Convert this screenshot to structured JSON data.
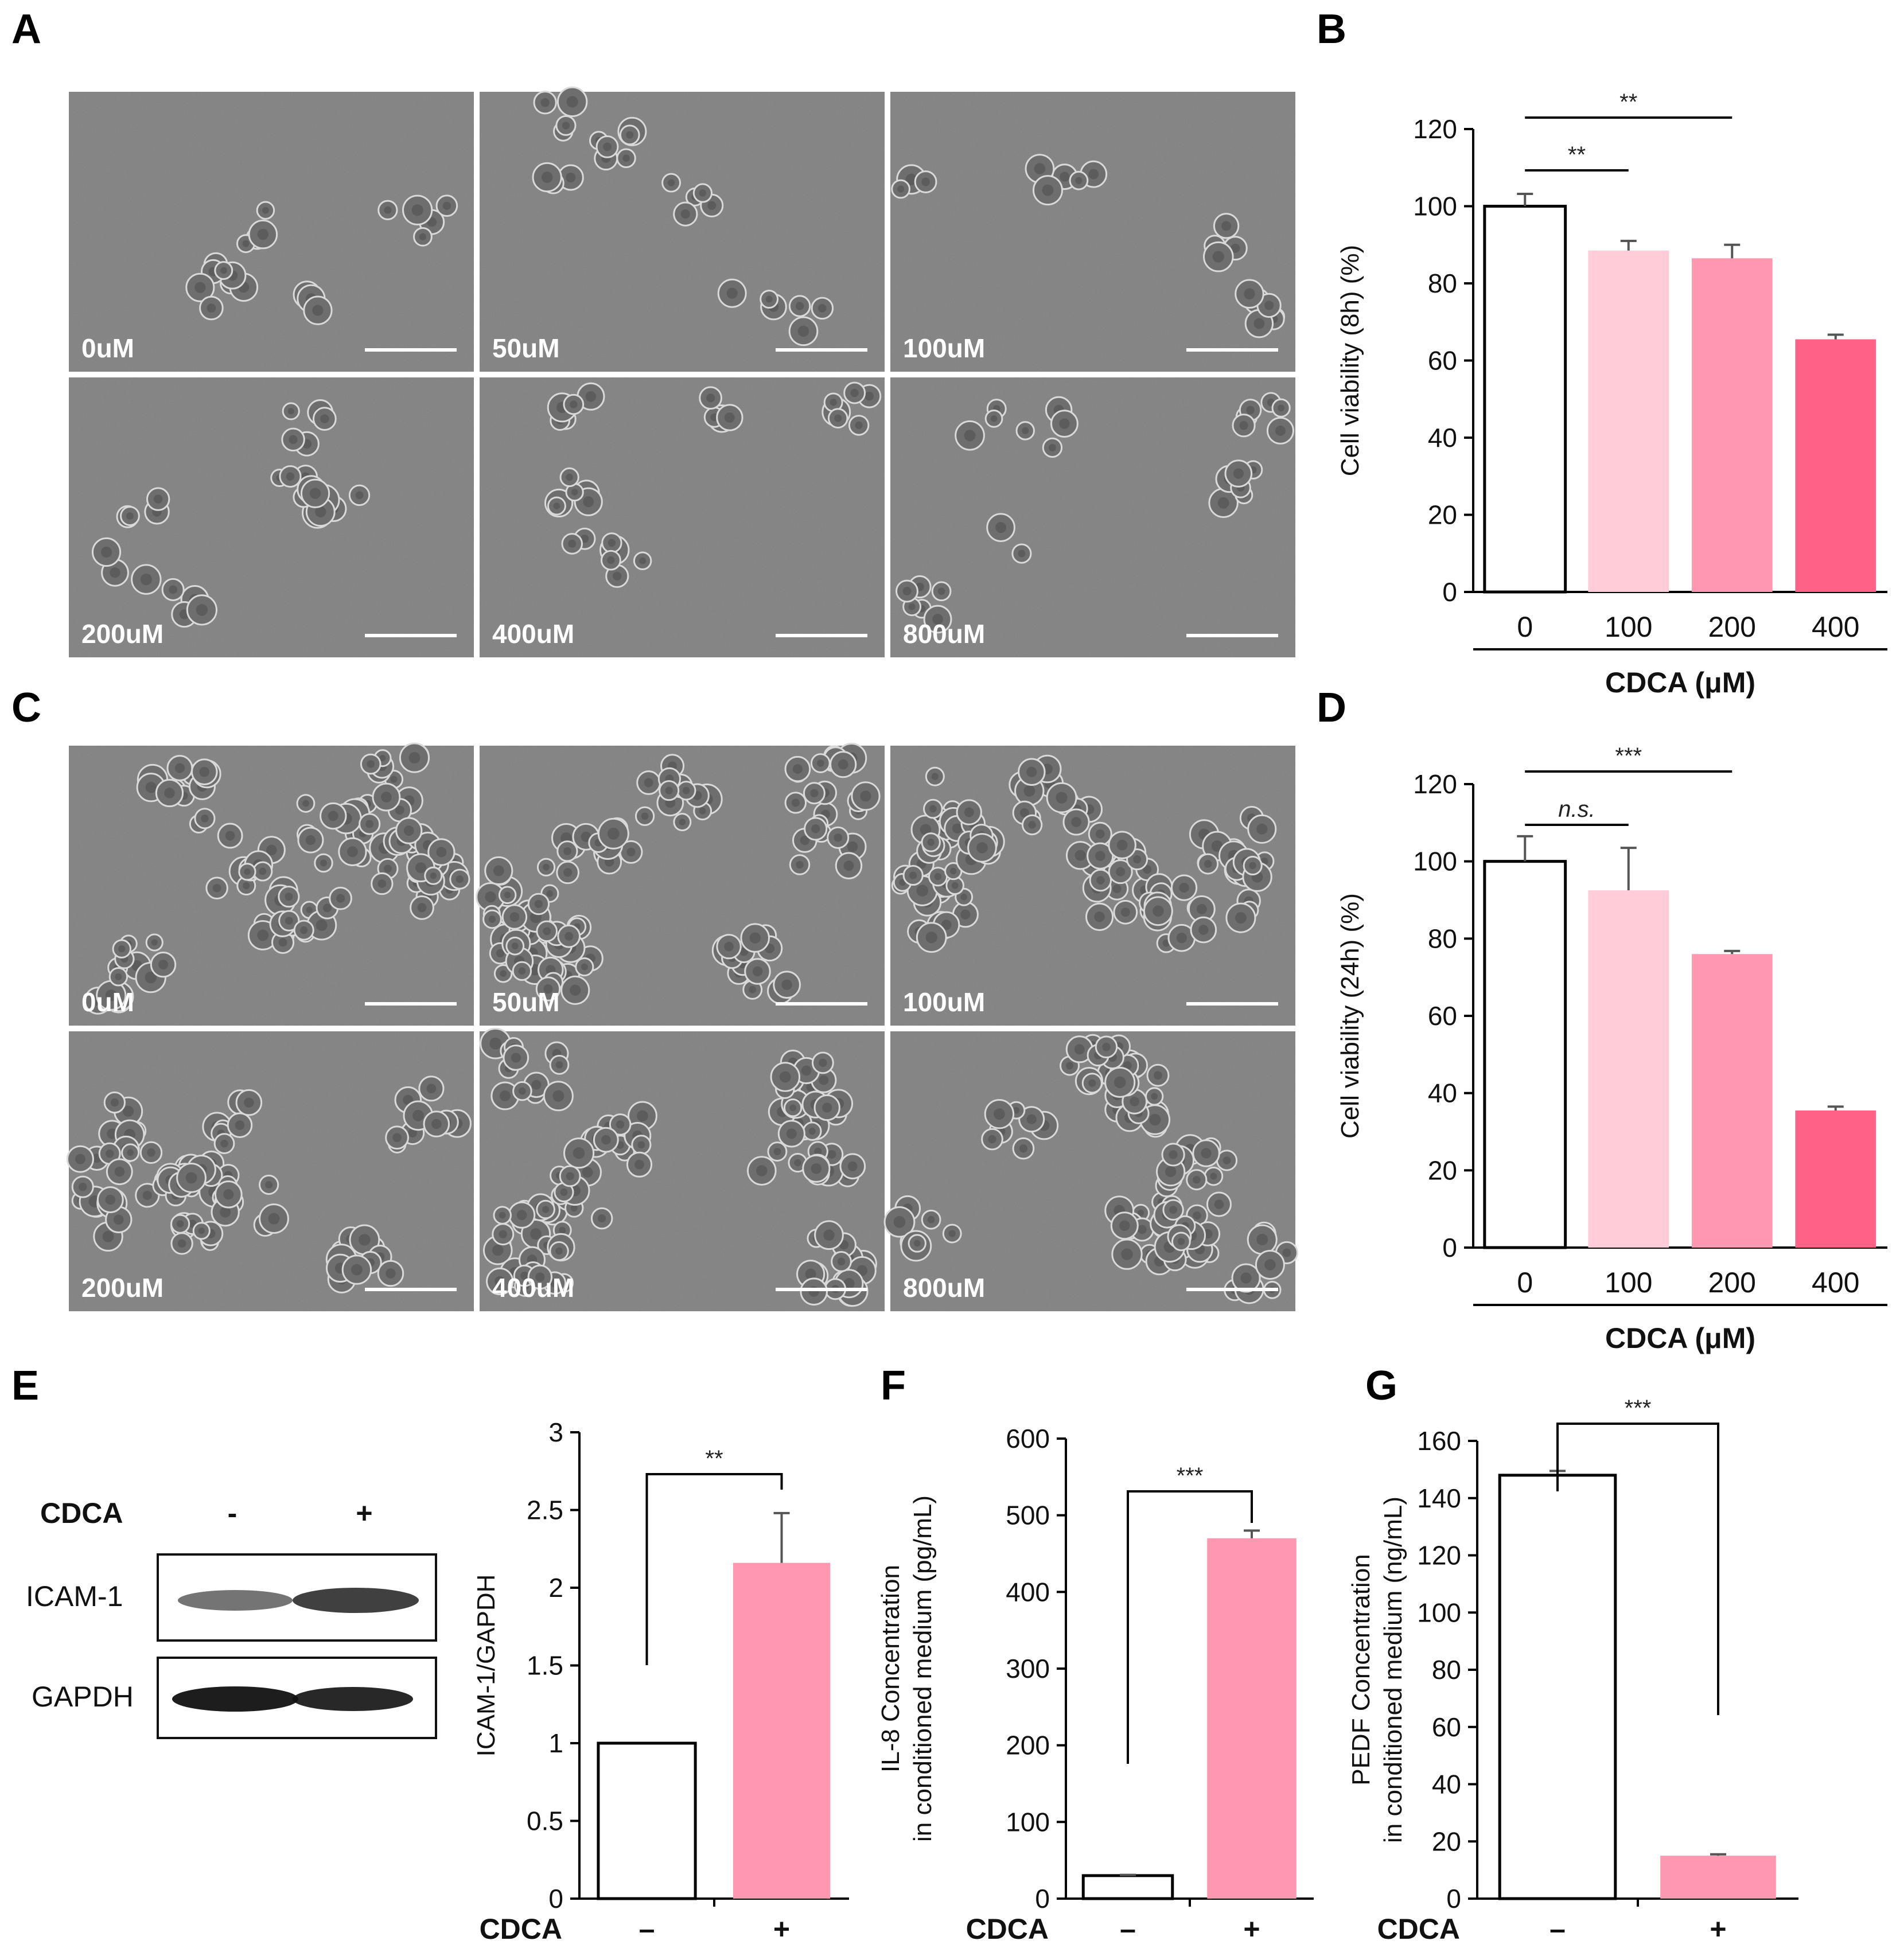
{
  "panel_labels": [
    "A",
    "B",
    "C",
    "D",
    "E",
    "F",
    "G"
  ],
  "micrographs": [
    {
      "labels": [
        "0uM",
        "50uM",
        "100uM",
        "200uM",
        "400uM",
        "800uM"
      ],
      "dense": false
    },
    {
      "labels": [
        "0uM",
        "50uM",
        "100uM",
        "200uM",
        "400uM",
        "800uM"
      ],
      "dense": true
    }
  ],
  "western_blot": {
    "condition_label": "CDCA",
    "lanes": [
      "-",
      "+"
    ],
    "bands": [
      "ICAM-1",
      "GAPDH"
    ],
    "colors": {
      "band": "#1e1e1e",
      "background": "#ffffff"
    }
  },
  "chart_data": [
    {
      "panel": "B",
      "type": "bar",
      "categories": [
        "0",
        "100",
        "200",
        "400"
      ],
      "values": [
        100,
        88.5,
        86.5,
        65.5
      ],
      "errors": [
        3.2,
        2.5,
        3.5,
        1.2
      ],
      "ylabel": "Cell viability (8h) (%)",
      "xlabel": "CDCA (μM)",
      "ylim": [
        0,
        120
      ],
      "yticks": [
        0,
        20,
        40,
        60,
        80,
        100,
        120
      ],
      "colors": [
        "#ffffff",
        "#ffccd8",
        "#fe97b0",
        "#ff6187"
      ],
      "significance": [
        {
          "from": 0,
          "to": 1,
          "label": "**"
        },
        {
          "from": 0,
          "to": 2,
          "label": "**"
        }
      ]
    },
    {
      "panel": "D",
      "type": "bar",
      "categories": [
        "0",
        "100",
        "200",
        "400"
      ],
      "values": [
        100,
        92.5,
        76,
        35.5
      ],
      "errors": [
        6.5,
        11,
        0.8,
        1
      ],
      "ylabel": "Cell viability (24h) (%)",
      "xlabel": "CDCA (μM)",
      "ylim": [
        0,
        120
      ],
      "yticks": [
        0,
        20,
        40,
        60,
        80,
        100,
        120
      ],
      "colors": [
        "#ffffff",
        "#ffccd8",
        "#fe97b0",
        "#ff6187"
      ],
      "significance": [
        {
          "from": 0,
          "to": 1,
          "label": "n.s.",
          "italic": true
        },
        {
          "from": 0,
          "to": 2,
          "label": "***"
        }
      ]
    },
    {
      "panel": "E",
      "type": "bar",
      "categories": [
        "–",
        "+"
      ],
      "values": [
        1,
        2.16
      ],
      "errors": [
        0,
        0.32
      ],
      "ylabel": "ICAM-1/GAPDH",
      "xlabel": "CDCA",
      "ylim": [
        0,
        3
      ],
      "yticks": [
        "0",
        "0.5",
        "1",
        "1.5",
        "2",
        "2.5",
        "3"
      ],
      "colors": [
        "#ffffff",
        "#fe97b0"
      ],
      "significance": [
        {
          "label": "**"
        }
      ]
    },
    {
      "panel": "F",
      "type": "bar",
      "categories": [
        "–",
        "+"
      ],
      "values": [
        30,
        470
      ],
      "errors": [
        1,
        10
      ],
      "ylabel": "IL-8 Concentration",
      "ylabel2": "in conditioned medium (pg/mL)",
      "xlabel": "CDCA",
      "ylim": [
        0,
        600
      ],
      "yticks": [
        "0",
        "100",
        "200",
        "300",
        "400",
        "500",
        "600"
      ],
      "colors": [
        "#ffffff",
        "#fe97b0"
      ],
      "significance": [
        {
          "label": "***"
        }
      ]
    },
    {
      "panel": "G",
      "type": "bar",
      "categories": [
        "–",
        "+"
      ],
      "values": [
        148,
        15
      ],
      "errors": [
        1.5,
        0.5
      ],
      "ylabel": "PEDF Concentration",
      "ylabel2": "in conditioned medium (ng/mL)",
      "xlabel": "CDCA",
      "ylim": [
        0,
        160
      ],
      "yticks": [
        "0",
        "20",
        "40",
        "60",
        "80",
        "100",
        "120",
        "140",
        "160"
      ],
      "colors": [
        "#ffffff",
        "#fe97b0"
      ],
      "significance": [
        {
          "label": "***"
        }
      ]
    }
  ]
}
